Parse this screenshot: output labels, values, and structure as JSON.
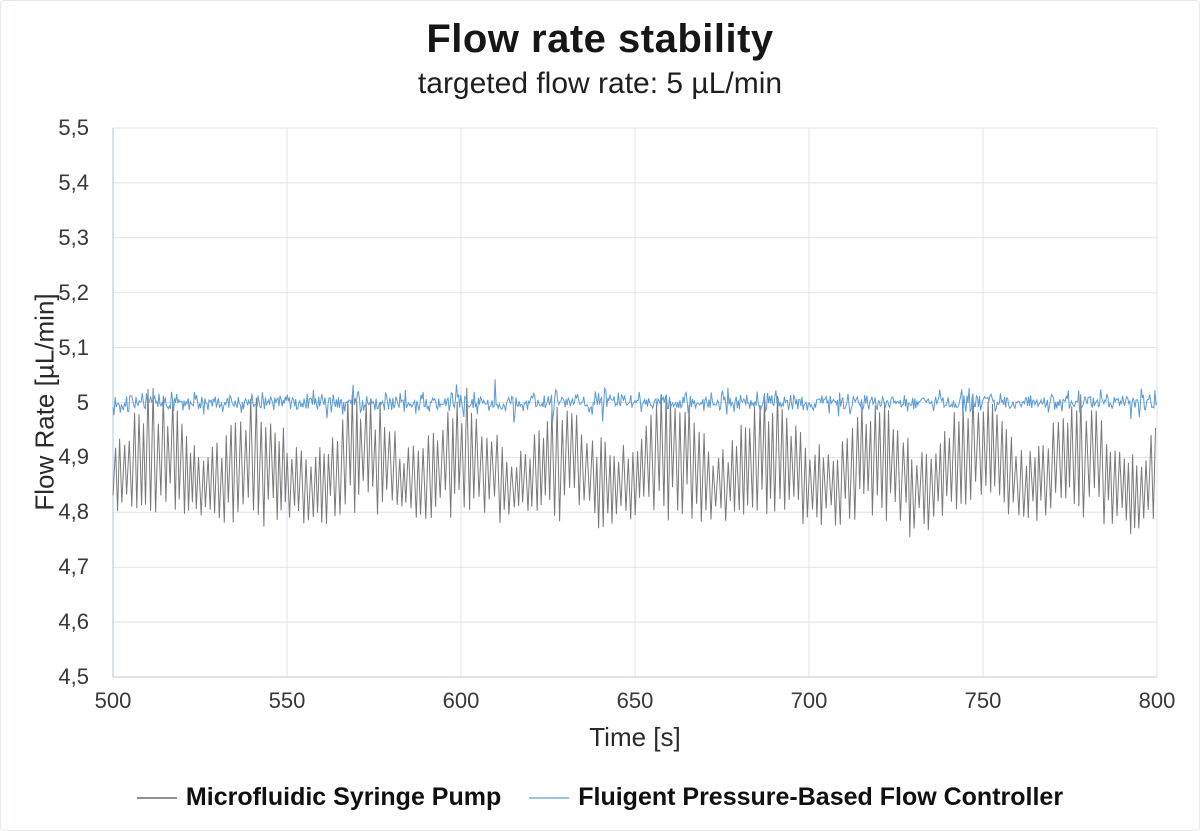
{
  "header": {
    "title": "Flow rate stability",
    "subtitle": "targeted flow rate: 5 µL/min"
  },
  "chart_data": {
    "type": "line",
    "title": "Flow rate stability",
    "subtitle": "targeted flow rate: 5 µL/min",
    "xlabel": "Time [s]",
    "ylabel": "Flow Rate [µL/min]",
    "xlim": [
      500,
      800
    ],
    "ylim": [
      4.5,
      5.5
    ],
    "grid": "full",
    "grid_color": "#dde4ed",
    "axis_line_color": "#b7c5d6",
    "tick_label_color": "#383838",
    "legend_position": "bottom",
    "x_ticks": [
      {
        "value": 500,
        "label": "500"
      },
      {
        "value": 550,
        "label": "550"
      },
      {
        "value": 600,
        "label": "600"
      },
      {
        "value": 650,
        "label": "650"
      },
      {
        "value": 700,
        "label": "700"
      },
      {
        "value": 750,
        "label": "750"
      },
      {
        "value": 800,
        "label": "800"
      }
    ],
    "y_ticks": [
      {
        "value": 5.5,
        "label": "5,5"
      },
      {
        "value": 5.4,
        "label": "5,4"
      },
      {
        "value": 5.3,
        "label": "5,3"
      },
      {
        "value": 5.2,
        "label": "5,2"
      },
      {
        "value": 5.1,
        "label": "5,1"
      },
      {
        "value": 5.0,
        "label": "5"
      },
      {
        "value": 4.9,
        "label": "4,9"
      },
      {
        "value": 4.8,
        "label": "4,8"
      },
      {
        "value": 4.7,
        "label": "4,7"
      },
      {
        "value": 4.6,
        "label": "4,6"
      },
      {
        "value": 4.5,
        "label": "4,5"
      }
    ],
    "series": [
      {
        "name": "Microfluidic Syringe Pump",
        "color": "#7a7a7a",
        "legend_swatch_color": "#8f8f8f",
        "description": "High-frequency sawtooth oscillation (~1.35 s period, ±0.05–0.10 µL/min) around a slowly oscillating mean (~29.5 s period) drifting between ≈4.85 and ≈4.91 µL/min; overall excursions ≈4.75–5.03 µL/min",
        "mean": 4.877,
        "slow_amp": 0.03,
        "slow_period_s": 29.5,
        "crest_time_s": 512,
        "fast_period_s": 1.35,
        "fast_amp": 0.075,
        "fast_amp_mod": 0.018,
        "jitter": 0.006,
        "seed": 7,
        "clamp": [
          4.745,
          5.035
        ]
      },
      {
        "name": "Fluigent Pressure-Based Flow Controller",
        "color": "#5b9bd5",
        "legend_swatch_color": "#9dc3e6",
        "description": "Tight noise band centred on 5.0 µL/min, ≈±0.015 µL/min with occasional spikes to ≈±0.035 µL/min",
        "mean": 5.0,
        "noise_sd": 0.0085,
        "spike_prob": 0.04,
        "spike_max": 0.033,
        "step_s": 0.3,
        "seed": 13,
        "clamp": [
          4.958,
          5.042
        ]
      }
    ]
  }
}
